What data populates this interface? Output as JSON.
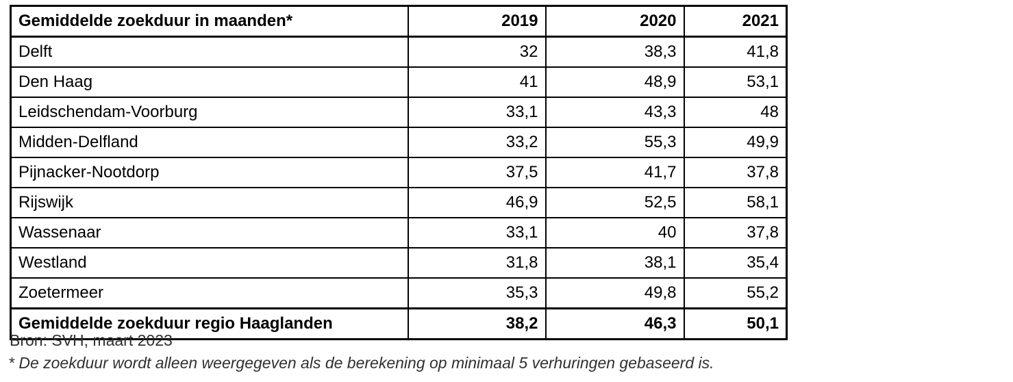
{
  "table": {
    "header": {
      "title": "Gemiddelde zoekduur in maanden*",
      "years": [
        "2019",
        "2020",
        "2021"
      ]
    },
    "rows": [
      {
        "label": "Delft",
        "values": [
          "32",
          "38,3",
          "41,8"
        ]
      },
      {
        "label": "Den Haag",
        "values": [
          "41",
          "48,9",
          "53,1"
        ]
      },
      {
        "label": "Leidschendam-Voorburg",
        "values": [
          "33,1",
          "43,3",
          "48"
        ]
      },
      {
        "label": "Midden-Delfland",
        "values": [
          "33,2",
          "55,3",
          "49,9"
        ]
      },
      {
        "label": "Pijnacker-Nootdorp",
        "values": [
          "37,5",
          "41,7",
          "37,8"
        ]
      },
      {
        "label": "Rijswijk",
        "values": [
          "46,9",
          "52,5",
          "58,1"
        ]
      },
      {
        "label": "Wassenaar",
        "values": [
          "33,1",
          "40",
          "37,8"
        ]
      },
      {
        "label": "Westland",
        "values": [
          "31,8",
          "38,1",
          "35,4"
        ]
      },
      {
        "label": "Zoetermeer",
        "values": [
          "35,3",
          "49,8",
          "55,2"
        ]
      }
    ],
    "total_row": {
      "label": "Gemiddelde zoekduur regio Haaglanden",
      "values": [
        "38,2",
        "46,3",
        "50,1"
      ]
    }
  },
  "notes": {
    "source": "Bron: SVH, maart 2023",
    "footnote": "* De zoekduur wordt alleen weergegeven als de berekening op minimaal 5 verhuringen gebaseerd is."
  },
  "colors": {
    "border": "#000000",
    "table_text": "#000000",
    "note_text": "#303030",
    "background": "#ffffff"
  },
  "chart_data": {
    "type": "table",
    "title": "Gemiddelde zoekduur in maanden*",
    "categories": [
      "2019",
      "2020",
      "2021"
    ],
    "series": [
      {
        "name": "Delft",
        "values": [
          32,
          38.3,
          41.8
        ]
      },
      {
        "name": "Den Haag",
        "values": [
          41,
          48.9,
          53.1
        ]
      },
      {
        "name": "Leidschendam-Voorburg",
        "values": [
          33.1,
          43.3,
          48
        ]
      },
      {
        "name": "Midden-Delfland",
        "values": [
          33.2,
          55.3,
          49.9
        ]
      },
      {
        "name": "Pijnacker-Nootdorp",
        "values": [
          37.5,
          41.7,
          37.8
        ]
      },
      {
        "name": "Rijswijk",
        "values": [
          46.9,
          52.5,
          58.1
        ]
      },
      {
        "name": "Wassenaar",
        "values": [
          33.1,
          40,
          37.8
        ]
      },
      {
        "name": "Westland",
        "values": [
          31.8,
          38.1,
          35.4
        ]
      },
      {
        "name": "Zoetermeer",
        "values": [
          35.3,
          49.8,
          55.2
        ]
      },
      {
        "name": "Gemiddelde zoekduur regio Haaglanden",
        "values": [
          38.2,
          46.3,
          50.1
        ]
      }
    ],
    "decimal_separator": ",",
    "source": "Bron: SVH, maart 2023",
    "footnote": "* De zoekduur wordt alleen weergegeven als de berekening op minimaal 5 verhuringen gebaseerd is."
  }
}
